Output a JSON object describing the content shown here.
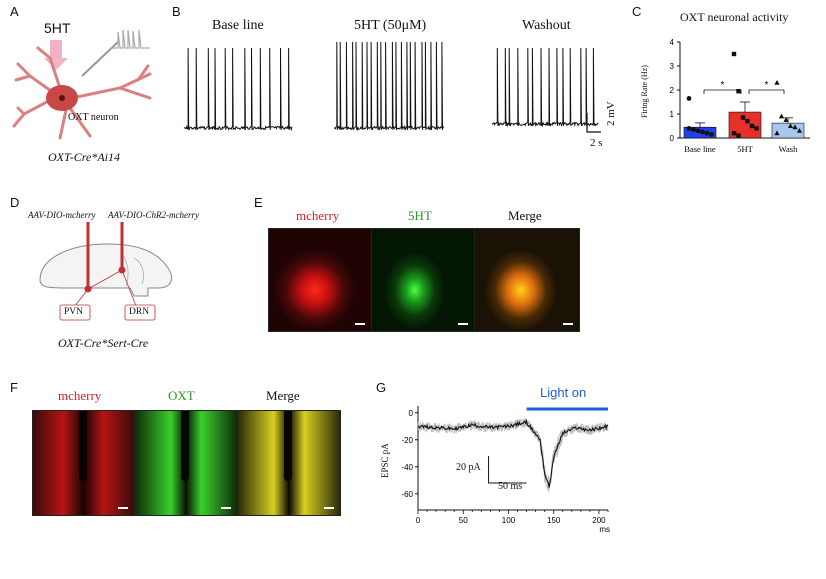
{
  "panels": {
    "a": {
      "letter": "A",
      "drug": "5HT",
      "neuron_label": "OXT neuron",
      "caption": "OXT-Cre*Ai14"
    },
    "b": {
      "letter": "B",
      "traces": [
        {
          "title": "Base line"
        },
        {
          "title": "5HT (50μM)"
        },
        {
          "title": "Washout"
        }
      ],
      "scale_v": "2 mV",
      "scale_t": "2 s"
    },
    "c": {
      "letter": "C"
    },
    "d": {
      "letter": "D",
      "virus1": "AAV-DIO-mcherry",
      "virus2": "AAV-DIO-ChR2-mcherry",
      "region1": "PVN",
      "region2": "DRN",
      "caption": "OXT-Cre*Sert-Cre"
    },
    "e": {
      "letter": "E",
      "labels": [
        "mcherry",
        "5HT",
        "Merge"
      ]
    },
    "f": {
      "letter": "F",
      "labels": [
        "mcherry",
        "OXT",
        "Merge"
      ]
    },
    "g": {
      "letter": "G",
      "light_label": "Light on",
      "scale_i": "20 pA",
      "scale_t": "50 ms"
    }
  },
  "colors": {
    "mcherry": "#d42020",
    "green": "#2a9a2a",
    "light": "#1a5fd8",
    "bar_base": "#1f3ff0",
    "bar_5ht": "#e8302a",
    "bar_wash": "#a9c6ee"
  },
  "chart_data": [
    {
      "type": "bar",
      "title": "OXT neuronal activity",
      "ylabel": "Firing Rate (Hz)",
      "xlabel": "",
      "categories": [
        "Base line",
        "5HT",
        "Wash"
      ],
      "values": [
        0.45,
        1.08,
        0.62
      ],
      "errors": [
        0.18,
        0.42,
        0.22
      ],
      "ylim": [
        0,
        4
      ],
      "yticks": [
        "0",
        "1",
        "2",
        "3",
        "4"
      ],
      "points": [
        [
          1.65,
          0.35,
          0.3,
          0.25,
          0.2,
          0.15,
          0.4
        ],
        [
          3.5,
          1.95,
          0.85,
          0.7,
          0.5,
          0.4,
          0.2,
          0.1
        ],
        [
          2.3,
          0.9,
          0.75,
          0.5,
          0.45,
          0.3,
          0.2
        ]
      ],
      "significance": [
        "*",
        "*"
      ]
    },
    {
      "type": "line",
      "title": "",
      "ylabel": "EPSC pA",
      "xlabel": "ms",
      "xlim": [
        0,
        210
      ],
      "ylim": [
        -72,
        5
      ],
      "xticks": [
        "0",
        "50",
        "100",
        "150",
        "200"
      ],
      "yticks": [
        "0",
        "-20",
        "-40",
        "-60"
      ],
      "light_on": [
        120,
        210
      ],
      "series": [
        {
          "name": "mean EPSC",
          "x": [
            0,
            20,
            40,
            60,
            80,
            100,
            120,
            135,
            140,
            145,
            150,
            160,
            175,
            190,
            210
          ],
          "y": [
            -10,
            -11,
            -12,
            -9,
            -11,
            -10,
            -7,
            -20,
            -45,
            -55,
            -33,
            -15,
            -11,
            -13,
            -10
          ]
        }
      ]
    }
  ]
}
